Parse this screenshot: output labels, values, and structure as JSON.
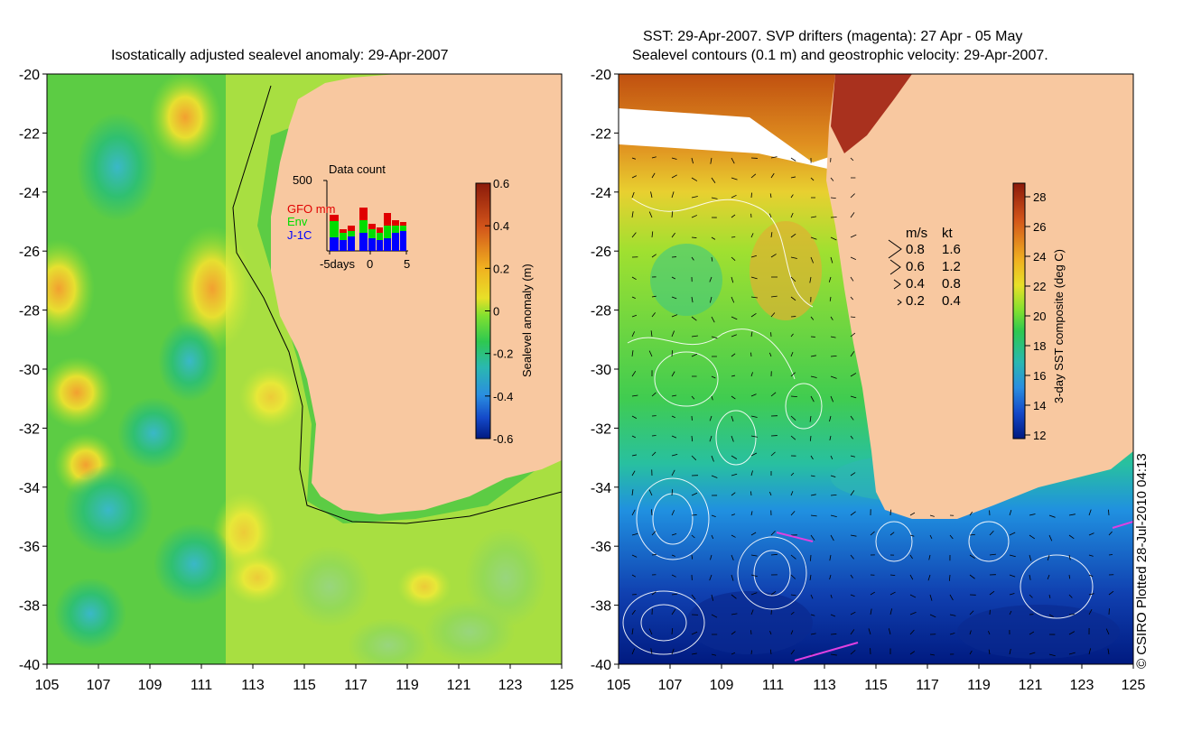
{
  "left_map": {
    "title": "Isostatically adjusted sealevel anomaly: 29-Apr-2007",
    "colorbar": {
      "label": "Sealevel anomaly (m)",
      "ticks": [
        "0.6",
        "0.4",
        "0.2",
        "0",
        "-0.2",
        "-0.4",
        "-0.6"
      ],
      "colors": [
        "#8b1a0a",
        "#d2541a",
        "#f0a020",
        "#f2e020",
        "#a8e828",
        "#2ec850",
        "#2ab8a0",
        "#2a8ee0",
        "#1448c8",
        "#001a80"
      ]
    },
    "inset": {
      "title": "Data count",
      "ymax_label": "500",
      "legend": [
        "GFO mm",
        "Env",
        "J-1C"
      ],
      "legend_colors": [
        "#e00000",
        "#00dd00",
        "#0000ff"
      ],
      "xticks": [
        "-5days",
        "0",
        "5"
      ]
    }
  },
  "right_map": {
    "title_line1": "SST: 29-Apr-2007. SVP drifters (magenta): 27 Apr - 05 May",
    "title_line2": "Sealevel contours (0.1 m) and geostrophic velocity: 29-Apr-2007.",
    "colorbar": {
      "label": "3-day SST composite (deg C)",
      "ticks": [
        "28",
        "26",
        "24",
        "22",
        "20",
        "18",
        "16",
        "14",
        "12"
      ],
      "colors": [
        "#8b1a0a",
        "#d2541a",
        "#f0a020",
        "#f2e020",
        "#a8e828",
        "#2ec850",
        "#2ab8a0",
        "#2a8ee0",
        "#1448c8",
        "#001a80"
      ]
    },
    "velocity_legend": {
      "header": [
        "m/s",
        "kt"
      ],
      "rows": [
        [
          "0.8",
          "1.6"
        ],
        [
          "0.6",
          "1.2"
        ],
        [
          "0.4",
          "0.8"
        ],
        [
          "0.2",
          "0.4"
        ]
      ]
    }
  },
  "axes": {
    "lat_ticks": [
      "-20",
      "-22",
      "-24",
      "-26",
      "-28",
      "-30",
      "-32",
      "-34",
      "-36",
      "-38",
      "-40"
    ],
    "lon_ticks": [
      "105",
      "107",
      "109",
      "111",
      "113",
      "115",
      "117",
      "119",
      "121",
      "123",
      "125"
    ]
  },
  "colors": {
    "land": "#f8c8a0",
    "ocean_mid": "#5ccc44",
    "axis": "#000000"
  },
  "credit": "© CSIRO Plotted 28-Jul-2010 04:13"
}
